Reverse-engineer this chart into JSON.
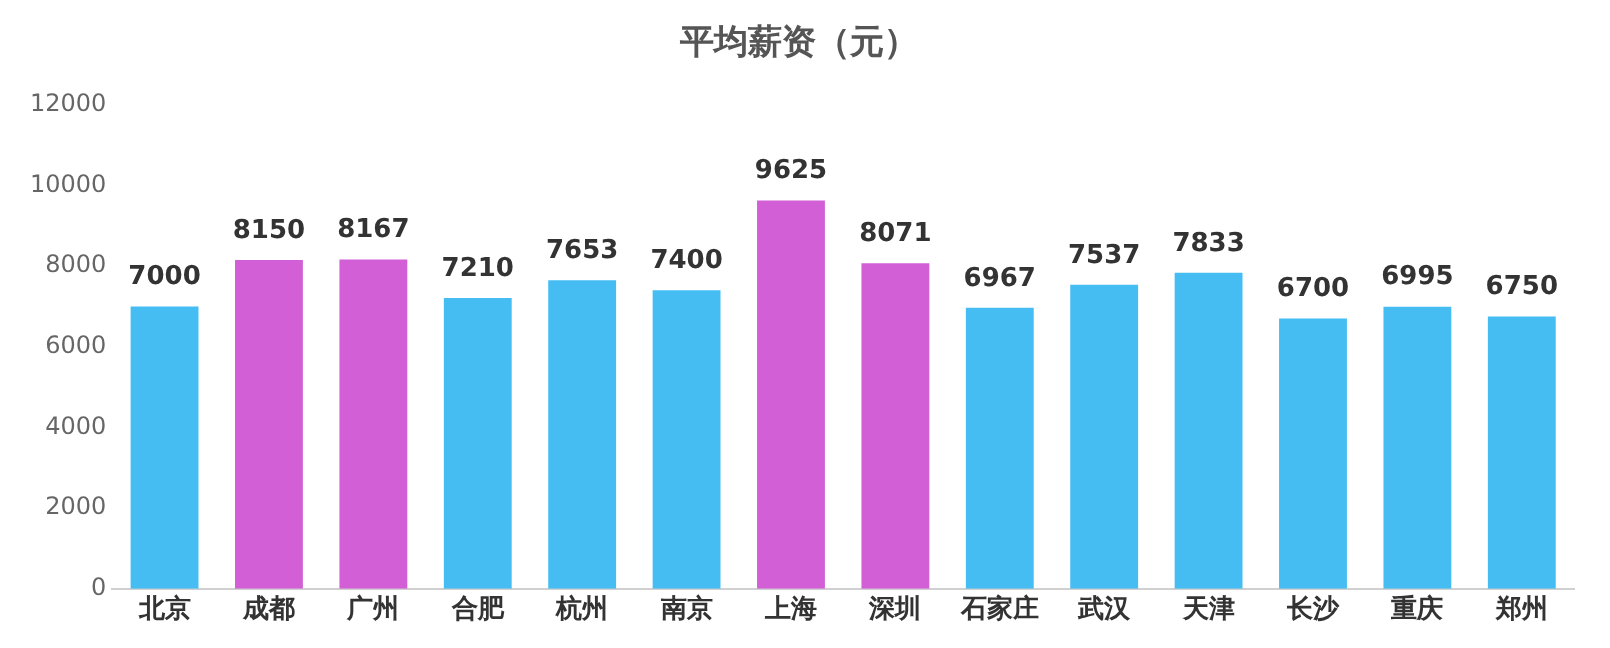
{
  "chart_data": {
    "type": "bar",
    "title": "平均薪资（元）",
    "categories": [
      "北京",
      "成都",
      "广州",
      "合肥",
      "杭州",
      "南京",
      "上海",
      "深圳",
      "石家庄",
      "武汉",
      "天津",
      "长沙",
      "重庆",
      "郑州"
    ],
    "values": [
      7000,
      8150,
      8167,
      7210,
      7653,
      7400,
      9625,
      8071,
      6967,
      7537,
      7833,
      6700,
      6995,
      6750
    ],
    "colors": [
      "#45bdf3",
      "#d25fd6",
      "#d25fd6",
      "#45bdf3",
      "#45bdf3",
      "#45bdf3",
      "#d25fd6",
      "#d25fd6",
      "#45bdf3",
      "#45bdf3",
      "#45bdf3",
      "#45bdf3",
      "#45bdf3",
      "#45bdf3"
    ],
    "ylim": [
      0,
      12000
    ],
    "yticks": [
      0,
      2000,
      4000,
      6000,
      8000,
      10000,
      12000
    ],
    "grid": false,
    "legend": false,
    "data_labels": true
  }
}
